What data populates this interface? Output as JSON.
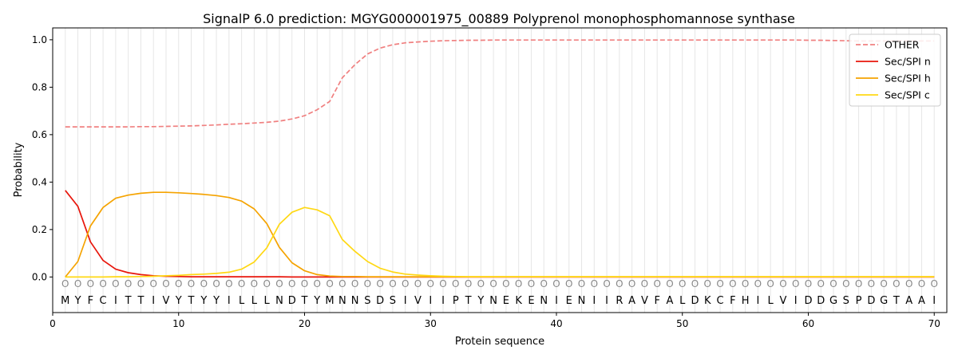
{
  "chart_data": {
    "type": "line",
    "title": "SignalP 6.0 prediction: MGYG000001975_00889 Polyprenol monophosphomannose synthase",
    "xlabel": "Protein sequence",
    "ylabel": "Probability",
    "xlim": [
      0,
      71
    ],
    "ylim": [
      -0.15,
      1.05
    ],
    "x_ticks": [
      0,
      10,
      20,
      30,
      40,
      50,
      60,
      70
    ],
    "y_ticks": [
      0.0,
      0.2,
      0.4,
      0.6,
      0.8,
      1.0
    ],
    "x_tick_labels": [
      "0",
      "10",
      "20",
      "30",
      "40",
      "50",
      "60",
      "70"
    ],
    "y_tick_labels": [
      "0.0",
      "0.2",
      "0.4",
      "0.6",
      "0.8",
      "1.0"
    ],
    "grid": "vertical lines at each residue",
    "legend_position": "top-right",
    "sequence": [
      "M",
      "Y",
      "F",
      "C",
      "I",
      "T",
      "T",
      "I",
      "V",
      "Y",
      "T",
      "Y",
      "Y",
      "I",
      "L",
      "L",
      "L",
      "N",
      "D",
      "T",
      "Y",
      "M",
      "N",
      "N",
      "S",
      "D",
      "S",
      "I",
      "V",
      "I",
      "I",
      "P",
      "T",
      "Y",
      "N",
      "E",
      "K",
      "E",
      "N",
      "I",
      "E",
      "N",
      "I",
      "I",
      "R",
      "A",
      "V",
      "F",
      "A",
      "L",
      "D",
      "K",
      "C",
      "F",
      "H",
      "I",
      "L",
      "V",
      "I",
      "D",
      "D",
      "G",
      "S",
      "P",
      "D",
      "G",
      "T",
      "A",
      "A",
      "I"
    ],
    "residue_marker": "O",
    "series": [
      {
        "name": "OTHER",
        "color": "#f08080",
        "dash": true,
        "values": [
          0.633,
          0.633,
          0.633,
          0.633,
          0.633,
          0.633,
          0.634,
          0.634,
          0.635,
          0.636,
          0.637,
          0.639,
          0.641,
          0.644,
          0.646,
          0.649,
          0.652,
          0.657,
          0.666,
          0.68,
          0.705,
          0.74,
          0.84,
          0.895,
          0.94,
          0.965,
          0.979,
          0.987,
          0.991,
          0.994,
          0.996,
          0.997,
          0.998,
          0.998,
          0.999,
          0.999,
          0.999,
          0.999,
          0.999,
          0.999,
          0.999,
          0.999,
          0.999,
          0.999,
          0.999,
          0.999,
          0.999,
          0.999,
          0.999,
          0.999,
          0.999,
          0.999,
          0.999,
          0.999,
          0.999,
          0.999,
          0.999,
          0.999,
          0.999,
          0.998,
          0.998,
          0.997,
          0.996,
          0.995,
          0.995,
          0.995,
          0.995,
          0.995,
          0.995,
          0.995
        ]
      },
      {
        "name": "Sec/SPI n",
        "color": "#e8160c",
        "dash": false,
        "values": [
          0.365,
          0.298,
          0.148,
          0.07,
          0.033,
          0.018,
          0.01,
          0.005,
          0.003,
          0.002,
          0.001,
          0.001,
          0.001,
          0.001,
          0.001,
          0.001,
          0.001,
          0.001,
          0,
          0,
          0,
          0,
          0,
          0,
          0,
          0,
          0,
          0,
          0,
          0,
          0,
          0,
          0,
          0,
          0,
          0,
          0,
          0,
          0,
          0,
          0,
          0,
          0,
          0,
          0,
          0,
          0,
          0,
          0,
          0,
          0,
          0,
          0,
          0,
          0,
          0,
          0,
          0,
          0,
          0,
          0,
          0,
          0,
          0,
          0,
          0,
          0,
          0,
          0,
          0
        ]
      },
      {
        "name": "Sec/SPI h",
        "color": "#f5a300",
        "dash": false,
        "values": [
          0.0,
          0.065,
          0.215,
          0.293,
          0.332,
          0.345,
          0.353,
          0.357,
          0.357,
          0.355,
          0.352,
          0.348,
          0.343,
          0.335,
          0.32,
          0.287,
          0.225,
          0.125,
          0.06,
          0.026,
          0.01,
          0.004,
          0.002,
          0.002,
          0.001,
          0.001,
          0.001,
          0.001,
          0.001,
          0.001,
          0.001,
          0.001,
          0.001,
          0.001,
          0.001,
          0.001,
          0.001,
          0.001,
          0.001,
          0.001,
          0.001,
          0.001,
          0.001,
          0.001,
          0.001,
          0.001,
          0.001,
          0.001,
          0.001,
          0.001,
          0.001,
          0.001,
          0.001,
          0.001,
          0.001,
          0.001,
          0.001,
          0.001,
          0.001,
          0.001,
          0.001,
          0.001,
          0.001,
          0.001,
          0.001,
          0.001,
          0.001,
          0.001,
          0.001,
          0.001
        ]
      },
      {
        "name": "Sec/SPI c",
        "color": "#ffd814",
        "dash": false,
        "values": [
          0.0,
          0.0,
          0.0,
          0.0,
          0.001,
          0.001,
          0.002,
          0.003,
          0.005,
          0.007,
          0.01,
          0.012,
          0.015,
          0.02,
          0.033,
          0.063,
          0.123,
          0.222,
          0.273,
          0.293,
          0.283,
          0.258,
          0.158,
          0.108,
          0.065,
          0.037,
          0.021,
          0.012,
          0.008,
          0.005,
          0.003,
          0.002,
          0.001,
          0.001,
          0.001,
          0.001,
          0.001,
          0.001,
          0.001,
          0.001,
          0.001,
          0.001,
          0.001,
          0.001,
          0.001,
          0.001,
          0.001,
          0.001,
          0.001,
          0.001,
          0.001,
          0.001,
          0.001,
          0.001,
          0.001,
          0.001,
          0.001,
          0.001,
          0.001,
          0.001,
          0.001,
          0.001,
          0.001,
          0.001,
          0.001,
          0.001,
          0.001,
          0.001,
          0.001,
          0.001
        ]
      }
    ]
  }
}
